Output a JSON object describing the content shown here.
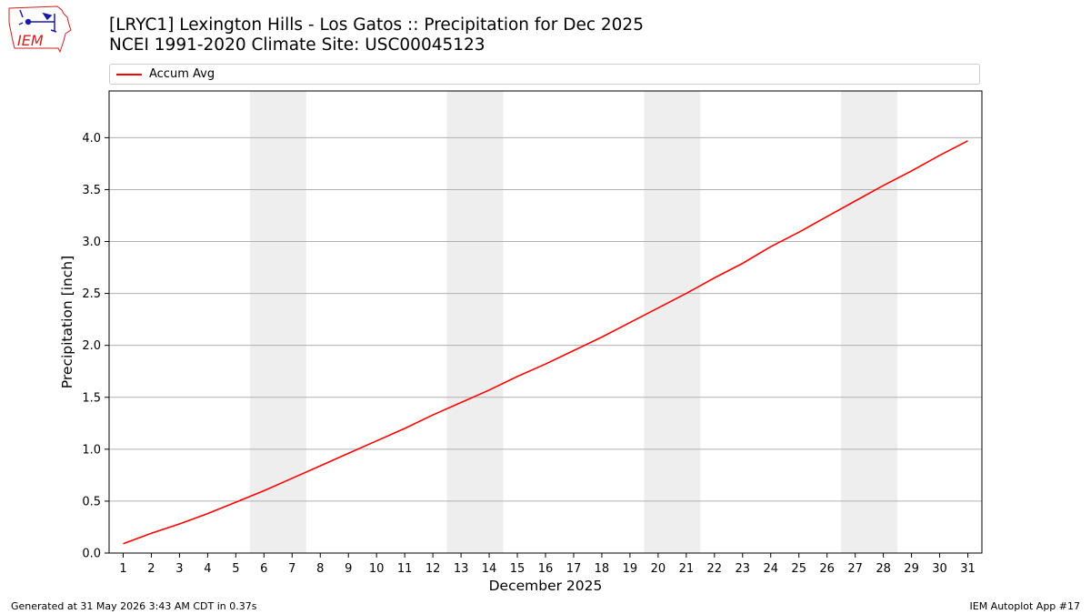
{
  "header": {
    "title_line1": "[LRYC1] Lexington Hills - Los Gatos :: Precipitation for Dec 2025",
    "title_line2": "NCEI 1991-2020 Climate Site: USC00045123",
    "logo_text": "IEM"
  },
  "footer": {
    "left": "Generated at 31 May 2026 3:43 AM CDT in 0.37s",
    "right": "IEM Autoplot App #17"
  },
  "colors": {
    "series": "#ff0000",
    "weekend_band": "#eeeeee",
    "grid": "#b0b0b0",
    "logo": "#1a1aa6",
    "logo_text": "#cc2222"
  },
  "chart_data": {
    "type": "line",
    "xlabel": "December 2025",
    "ylabel": "Precipitation [inch]",
    "xlim": [
      0.5,
      31.5
    ],
    "ylim": [
      0,
      4.45
    ],
    "x_ticks": [
      1,
      2,
      3,
      4,
      5,
      6,
      7,
      8,
      9,
      10,
      11,
      12,
      13,
      14,
      15,
      16,
      17,
      18,
      19,
      20,
      21,
      22,
      23,
      24,
      25,
      26,
      27,
      28,
      29,
      30,
      31
    ],
    "y_ticks": [
      0.0,
      0.5,
      1.0,
      1.5,
      2.0,
      2.5,
      3.0,
      3.5,
      4.0
    ],
    "y_tick_labels": [
      "0.0",
      "0.5",
      "1.0",
      "1.5",
      "2.0",
      "2.5",
      "3.0",
      "3.5",
      "4.0"
    ],
    "grid": "horizontal",
    "legend_position": "top",
    "shaded_weekends": [
      [
        6,
        7
      ],
      [
        13,
        14
      ],
      [
        20,
        21
      ],
      [
        27,
        28
      ]
    ],
    "series": [
      {
        "name": "Accum Avg",
        "x": [
          1,
          2,
          3,
          4,
          5,
          6,
          7,
          8,
          9,
          10,
          11,
          12,
          13,
          14,
          15,
          16,
          17,
          18,
          19,
          20,
          21,
          22,
          23,
          24,
          25,
          26,
          27,
          28,
          29,
          30,
          31
        ],
        "values": [
          0.09,
          0.19,
          0.28,
          0.38,
          0.49,
          0.6,
          0.72,
          0.84,
          0.96,
          1.08,
          1.2,
          1.33,
          1.45,
          1.57,
          1.7,
          1.82,
          1.95,
          2.08,
          2.22,
          2.36,
          2.5,
          2.65,
          2.79,
          2.95,
          3.09,
          3.24,
          3.39,
          3.54,
          3.68,
          3.83,
          3.97
        ]
      }
    ]
  }
}
